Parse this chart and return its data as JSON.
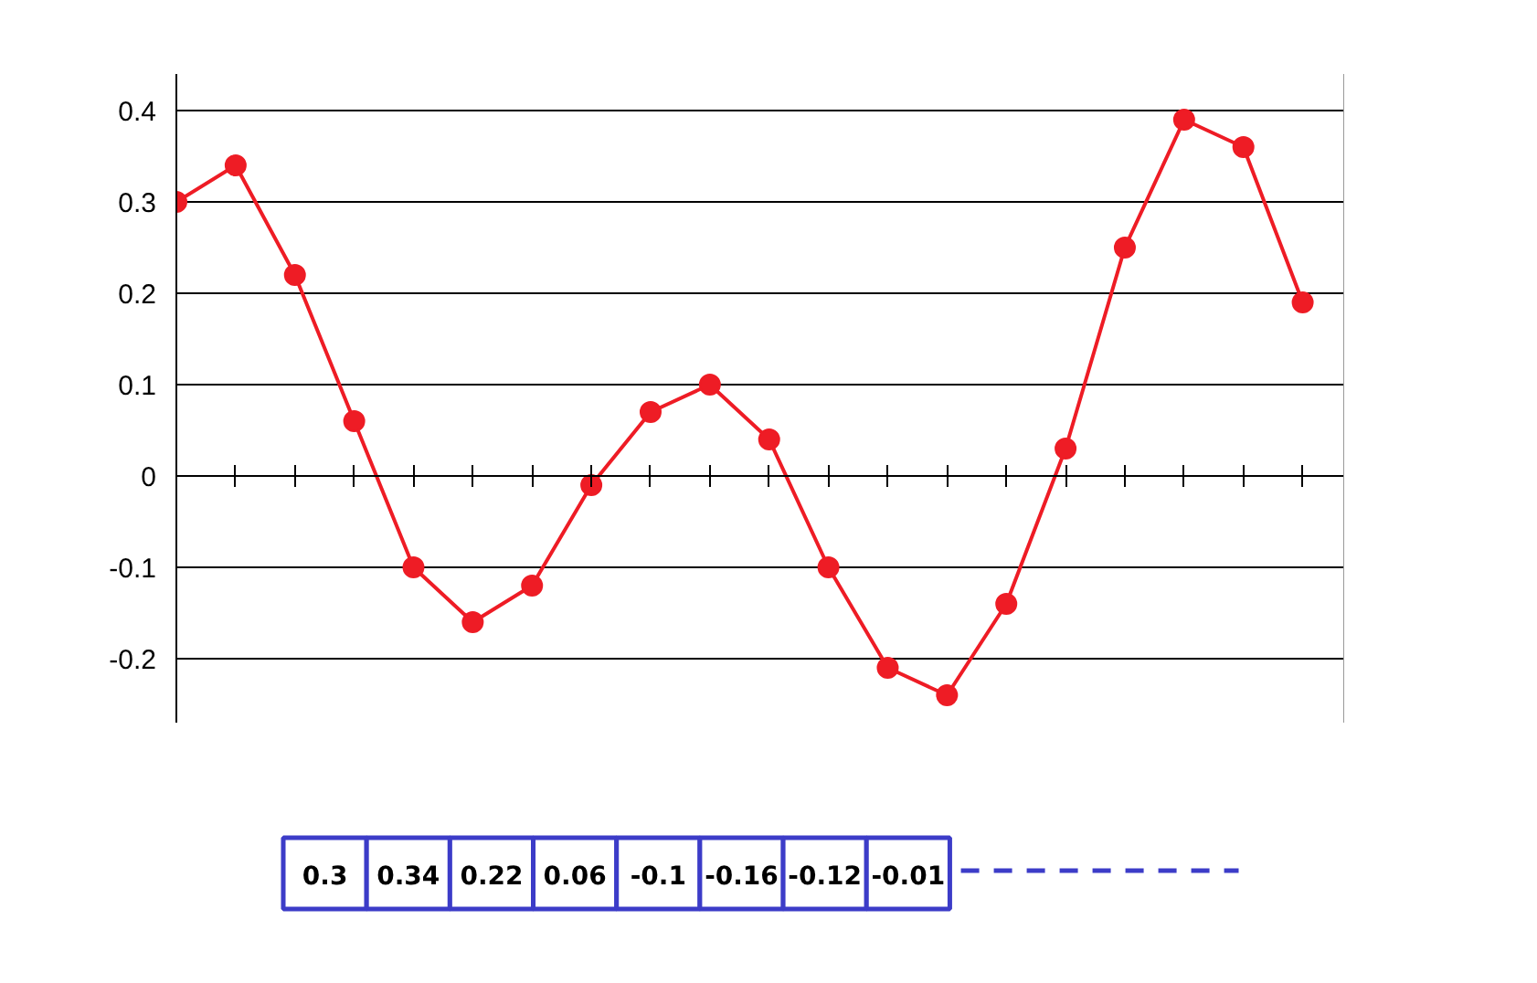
{
  "chart_data": {
    "type": "line",
    "ylim": [
      -0.27,
      0.44
    ],
    "categories": [
      null,
      null,
      null,
      null,
      null,
      null,
      null,
      null,
      null,
      null,
      null,
      null,
      null,
      null,
      null,
      null,
      null,
      null,
      null,
      null
    ],
    "yticks": [
      -0.2,
      -0.1,
      0,
      0.1,
      0.2,
      0.3,
      0.4
    ],
    "grid": "y",
    "tick_labels": "y",
    "marker": "circle",
    "line_style": "solid",
    "series": [
      {
        "color": "#ee1c25",
        "values": [
          0.3,
          0.34,
          0.22,
          0.06,
          -0.1,
          -0.16,
          -0.12,
          -0.01,
          0.07,
          0.1,
          0.04,
          -0.1,
          -0.21,
          -0.24,
          -0.14,
          0.03,
          0.25,
          0.39,
          0.36,
          0.19
        ]
      }
    ],
    "annotations": [
      "0.3",
      "0.34",
      "0.22",
      "0.06",
      "-0.1",
      "-0.16",
      "-0.12",
      "-0.01"
    ]
  }
}
